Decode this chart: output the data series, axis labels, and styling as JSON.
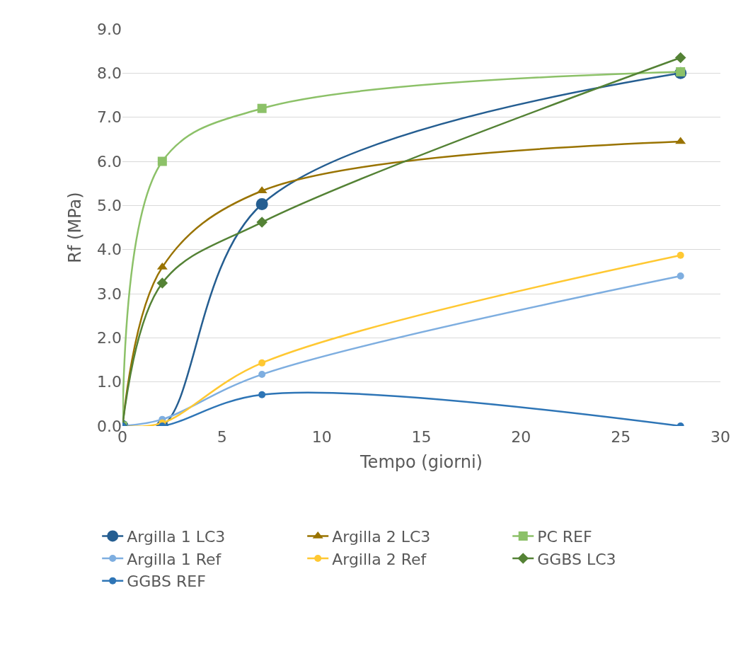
{
  "chart_data": {
    "type": "line",
    "xlabel": "Tempo (giorni)",
    "ylabel": "Rf (MPa)",
    "x": [
      0,
      2,
      7,
      28
    ],
    "xlim": [
      0,
      30
    ],
    "xticks": [
      0,
      5,
      10,
      15,
      20,
      25,
      30
    ],
    "ylim": [
      0,
      9
    ],
    "yticks": [
      {
        "value": 0,
        "label": "0.0"
      },
      {
        "value": 1,
        "label": "1.0"
      },
      {
        "value": 2,
        "label": "2.0"
      },
      {
        "value": 3,
        "label": "3.0"
      },
      {
        "value": 4,
        "label": "4.0"
      },
      {
        "value": 5,
        "label": "5.0"
      },
      {
        "value": 6,
        "label": "6.0"
      },
      {
        "value": 7,
        "label": "7.0"
      },
      {
        "value": 8,
        "label": "8.0"
      },
      {
        "value": 9,
        "label": "9.0"
      }
    ],
    "grid": "y",
    "legend": "bottom",
    "series": [
      {
        "name": "Argilla 1 LC3",
        "color": "#255e91",
        "marker": "circle",
        "values": [
          0,
          0,
          5.03,
          8.0
        ]
      },
      {
        "name": "Argilla 2 LC3",
        "color": "#997300",
        "marker": "triangle",
        "values": [
          0,
          3.6,
          5.33,
          6.45
        ]
      },
      {
        "name": "PC REF",
        "color": "#8cc168",
        "marker": "square",
        "values": [
          0,
          6.0,
          7.2,
          8.03
        ]
      },
      {
        "name": "Argilla 1 Ref",
        "color": "#7eaee0",
        "marker": "circle",
        "values": [
          0,
          0.15,
          1.17,
          3.4
        ]
      },
      {
        "name": "Argilla 2 Ref",
        "color": "#ffc832",
        "marker": "circle",
        "values": [
          0,
          0.07,
          1.43,
          3.87
        ]
      },
      {
        "name": "GGBS LC3",
        "color": "#548235",
        "marker": "diamond",
        "values": [
          0,
          3.24,
          4.62,
          8.35
        ]
      },
      {
        "name": "GGBS REF",
        "color": "#2e75b6",
        "marker": "circle",
        "values": [
          0,
          0,
          0.71,
          0
        ]
      }
    ]
  }
}
